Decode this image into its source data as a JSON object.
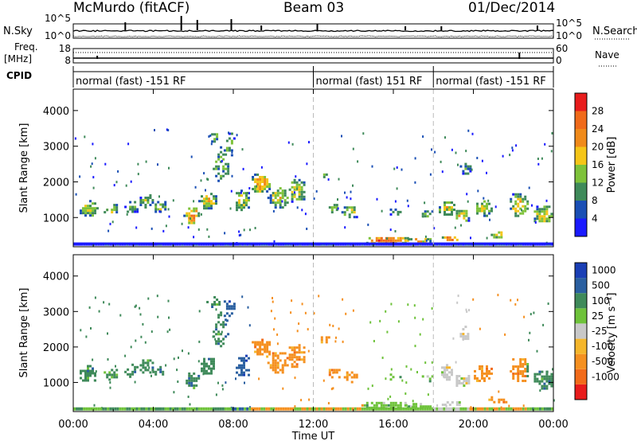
{
  "header": {
    "station": "McMurdo (fitACF)",
    "beam": "Beam 03",
    "date": "01/Dec/2014"
  },
  "colors": {
    "power": [
      "#1a1aff",
      "#1a4fb5",
      "#3f8a5a",
      "#7ec23a",
      "#f5c518",
      "#f08a1a",
      "#f06a1a",
      "#e81c1c"
    ],
    "velocity": [
      "#e81c1c",
      "#f26b1a",
      "#f59020",
      "#f5b62b",
      "#c8c8c8",
      "#6ec23a",
      "#3f8a5a",
      "#2a5fa0",
      "#1a3fb5"
    ],
    "axis": "#000000",
    "dashed_marker": "#bbbbbb"
  },
  "chart_data": [
    {
      "name": "noise-panel",
      "type": "line",
      "left_labels": [
        "N.Sky"
      ],
      "right_labels": [
        "N.Search"
      ],
      "left_ticks": [
        "10^5",
        "10^0"
      ],
      "right_ticks": [
        "10^5",
        "10^0"
      ]
    },
    {
      "name": "freq-panel",
      "type": "line",
      "left_labels": [
        "Freq.",
        "[MHz]"
      ],
      "right_labels": [
        "Nave"
      ],
      "left_ticks": [
        "18",
        "8"
      ],
      "right_ticks": [
        "60",
        "0"
      ]
    },
    {
      "name": "cpid-panel",
      "type": "table",
      "label": "CPID",
      "segments": [
        {
          "start_hour": 0,
          "end_hour": 12,
          "text": "normal (fast) -151 RF"
        },
        {
          "start_hour": 12,
          "end_hour": 18,
          "text": "normal (fast) 151 RF"
        },
        {
          "start_hour": 18,
          "end_hour": 24,
          "text": "normal (fast) -151 RF"
        }
      ]
    },
    {
      "name": "power-panel",
      "type": "heatmap",
      "ylabel": "Slant Range [km]",
      "ylim": [
        180,
        4600
      ],
      "yticks": [
        1000,
        2000,
        3000,
        4000
      ],
      "xlim": [
        0,
        24
      ],
      "colorbar_label": "Power [dB]",
      "colorbar_range": [
        0,
        32
      ],
      "colorbar_ticks": [
        4,
        8,
        12,
        16,
        20,
        24,
        28
      ]
    },
    {
      "name": "velocity-panel",
      "type": "heatmap",
      "ylabel": "Slant Range [km]",
      "ylim": [
        180,
        4600
      ],
      "yticks": [
        1000,
        2000,
        3000,
        4000
      ],
      "xlim": [
        0,
        24
      ],
      "xticks": [
        "00:00",
        "04:00",
        "08:00",
        "12:00",
        "16:00",
        "20:00",
        "00:00"
      ],
      "xlabel": "Time UT",
      "colorbar_label": "Velocity [m s⁻¹]",
      "colorbar_ticks": [
        "1000",
        "500",
        "100",
        "25",
        "-25",
        "-100",
        "-500",
        "-1000"
      ]
    }
  ]
}
